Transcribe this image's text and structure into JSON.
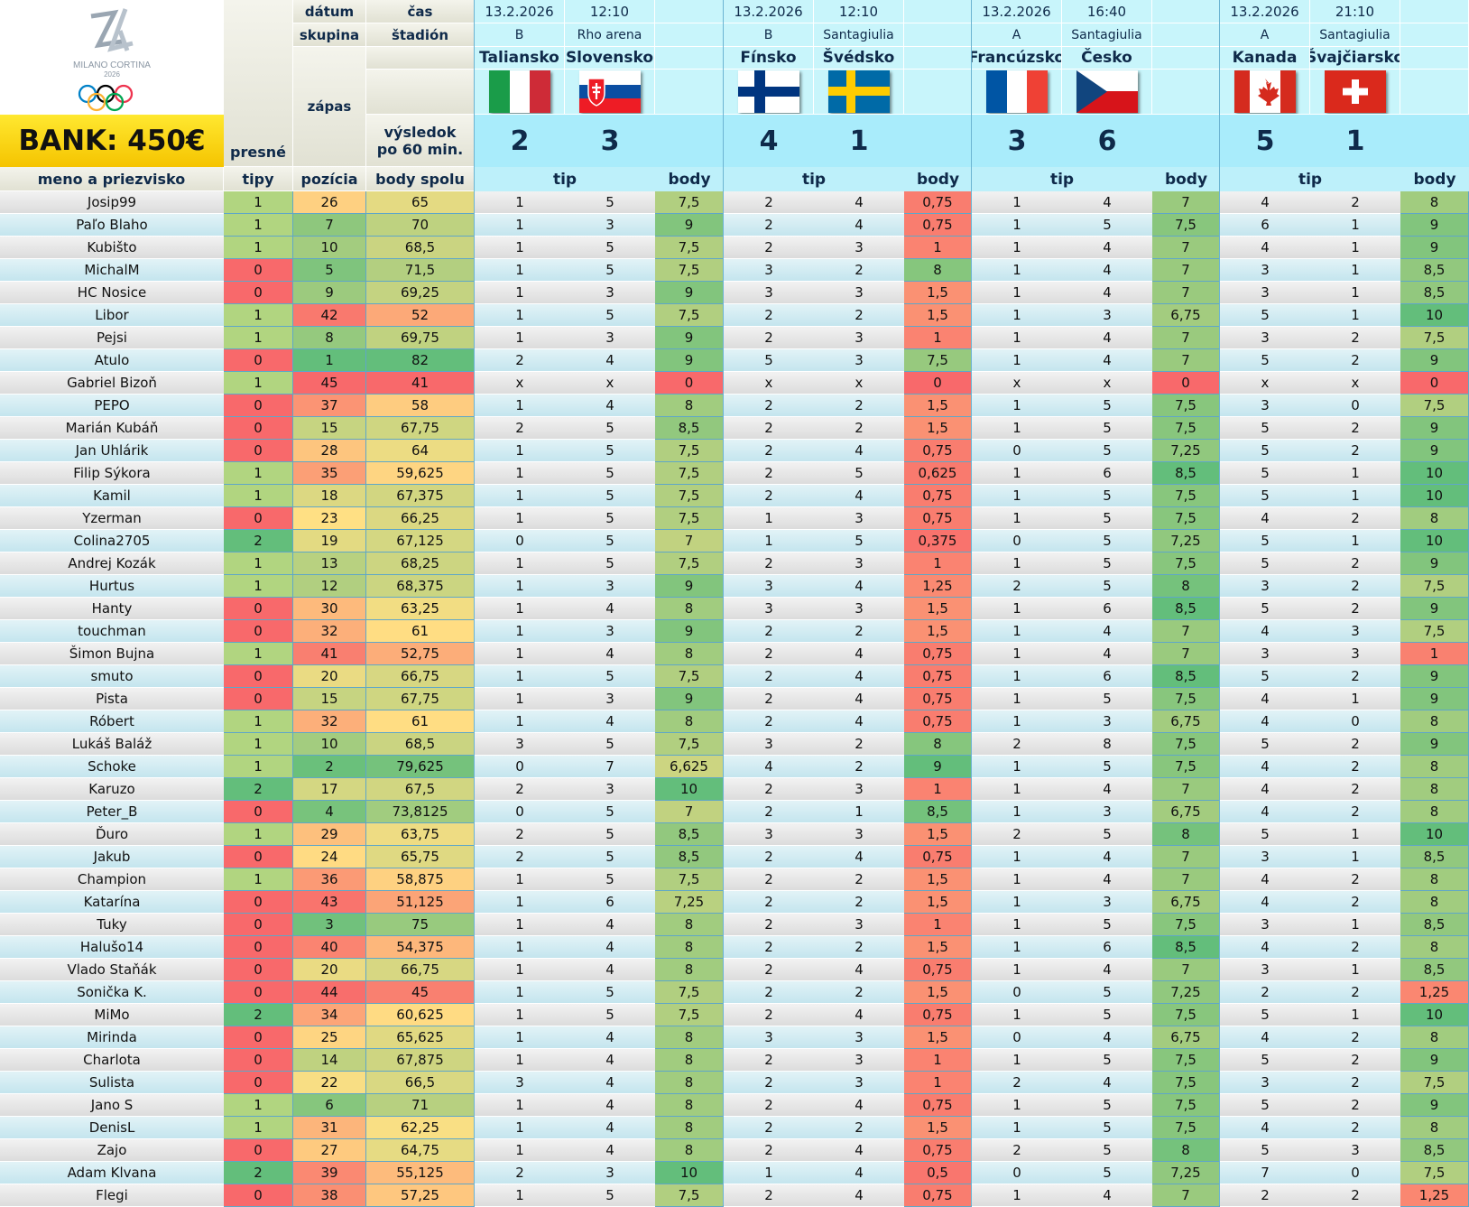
{
  "header": {
    "bank": "BANK: 450€",
    "label_datum": "dátum",
    "label_cas": "čas",
    "label_skupina": "skupina",
    "label_stadion": "štadión",
    "label_zapas": "zápas",
    "label_vysledok": "výsledok po 60 min.",
    "label_presne_tipy": "presné tipy",
    "label_meno": "meno a priezvisko",
    "label_pozicia": "pozícia",
    "label_body_spolu": "body spolu",
    "label_tip": "tip",
    "label_body": "body",
    "logo_text_1": "MILANO CORTINA",
    "logo_text_2": "2026"
  },
  "matches": [
    {
      "date": "13.2.2026",
      "time": "12:10",
      "group": "B",
      "stadium": "Rho arena",
      "home": "Taliansko",
      "away": "Slovensko",
      "home_score": "2",
      "away_score": "3",
      "home_flag": "flag-italy",
      "away_flag": "flag-slovakia"
    },
    {
      "date": "13.2.2026",
      "time": "12:10",
      "group": "B",
      "stadium": "Santagiulia",
      "home": "Fínsko",
      "away": "Švédsko",
      "home_score": "4",
      "away_score": "1",
      "home_flag": "flag-finland",
      "away_flag": "flag-sweden"
    },
    {
      "date": "13.2.2026",
      "time": "16:40",
      "group": "A",
      "stadium": "Santagiulia",
      "home": "Francúzsko",
      "away": "Česko",
      "home_score": "3",
      "away_score": "6",
      "home_flag": "flag-france",
      "away_flag": "flag-czechia"
    },
    {
      "date": "13.2.2026",
      "time": "21:10",
      "group": "A",
      "stadium": "Santagiulia",
      "home": "Kanada",
      "away": "Švajčiarsko",
      "home_score": "5",
      "away_score": "1",
      "home_flag": "flag-canada",
      "away_flag": "flag-switzerland"
    }
  ],
  "colors": {
    "red": "#f8696b",
    "orange": "#fba977",
    "yellow": "#ffe084",
    "lightgreen": "#b1d580",
    "green": "#63be7b"
  },
  "rows": [
    {
      "name": "Josip99",
      "exact": "1",
      "pos": "26",
      "total": "65",
      "m": [
        [
          "1",
          "5",
          "7,5"
        ],
        [
          "2",
          "4",
          "0,75"
        ],
        [
          "1",
          "4",
          "7"
        ],
        [
          "4",
          "2",
          "8"
        ]
      ]
    },
    {
      "name": "Paľo Blaho",
      "exact": "1",
      "pos": "7",
      "total": "70",
      "m": [
        [
          "1",
          "3",
          "9"
        ],
        [
          "2",
          "4",
          "0,75"
        ],
        [
          "1",
          "5",
          "7,5"
        ],
        [
          "6",
          "1",
          "9"
        ]
      ]
    },
    {
      "name": "Kubišto",
      "exact": "1",
      "pos": "10",
      "total": "68,5",
      "m": [
        [
          "1",
          "5",
          "7,5"
        ],
        [
          "2",
          "3",
          "1"
        ],
        [
          "1",
          "4",
          "7"
        ],
        [
          "4",
          "1",
          "9"
        ]
      ]
    },
    {
      "name": "MichalM",
      "exact": "0",
      "pos": "5",
      "total": "71,5",
      "m": [
        [
          "1",
          "5",
          "7,5"
        ],
        [
          "3",
          "2",
          "8"
        ],
        [
          "1",
          "4",
          "7"
        ],
        [
          "3",
          "1",
          "8,5"
        ]
      ]
    },
    {
      "name": "HC Nosice",
      "exact": "0",
      "pos": "9",
      "total": "69,25",
      "m": [
        [
          "1",
          "3",
          "9"
        ],
        [
          "3",
          "3",
          "1,5"
        ],
        [
          "1",
          "4",
          "7"
        ],
        [
          "3",
          "1",
          "8,5"
        ]
      ]
    },
    {
      "name": "Libor",
      "exact": "1",
      "pos": "42",
      "total": "52",
      "m": [
        [
          "1",
          "5",
          "7,5"
        ],
        [
          "2",
          "2",
          "1,5"
        ],
        [
          "1",
          "3",
          "6,75"
        ],
        [
          "5",
          "1",
          "10"
        ]
      ]
    },
    {
      "name": "Pejsi",
      "exact": "1",
      "pos": "8",
      "total": "69,75",
      "m": [
        [
          "1",
          "3",
          "9"
        ],
        [
          "2",
          "3",
          "1"
        ],
        [
          "1",
          "4",
          "7"
        ],
        [
          "3",
          "2",
          "7,5"
        ]
      ]
    },
    {
      "name": "Atulo",
      "exact": "0",
      "pos": "1",
      "total": "82",
      "m": [
        [
          "2",
          "4",
          "9"
        ],
        [
          "5",
          "3",
          "7,5"
        ],
        [
          "1",
          "4",
          "7"
        ],
        [
          "5",
          "2",
          "9"
        ]
      ]
    },
    {
      "name": "Gabriel Bizoň",
      "exact": "1",
      "pos": "45",
      "total": "41",
      "m": [
        [
          "x",
          "x",
          "0"
        ],
        [
          "x",
          "x",
          "0"
        ],
        [
          "x",
          "x",
          "0"
        ],
        [
          "x",
          "x",
          "0"
        ]
      ]
    },
    {
      "name": "PEPO",
      "exact": "0",
      "pos": "37",
      "total": "58",
      "m": [
        [
          "1",
          "4",
          "8"
        ],
        [
          "2",
          "2",
          "1,5"
        ],
        [
          "1",
          "5",
          "7,5"
        ],
        [
          "3",
          "0",
          "7,5"
        ]
      ]
    },
    {
      "name": "Marián Kubáň",
      "exact": "0",
      "pos": "15",
      "total": "67,75",
      "m": [
        [
          "2",
          "5",
          "8,5"
        ],
        [
          "2",
          "2",
          "1,5"
        ],
        [
          "1",
          "5",
          "7,5"
        ],
        [
          "5",
          "2",
          "9"
        ]
      ]
    },
    {
      "name": "Jan Uhlárik",
      "exact": "0",
      "pos": "28",
      "total": "64",
      "m": [
        [
          "1",
          "5",
          "7,5"
        ],
        [
          "2",
          "4",
          "0,75"
        ],
        [
          "0",
          "5",
          "7,25"
        ],
        [
          "5",
          "2",
          "9"
        ]
      ]
    },
    {
      "name": "Filip Sýkora",
      "exact": "1",
      "pos": "35",
      "total": "59,625",
      "m": [
        [
          "1",
          "5",
          "7,5"
        ],
        [
          "2",
          "5",
          "0,625"
        ],
        [
          "1",
          "6",
          "8,5"
        ],
        [
          "5",
          "1",
          "10"
        ]
      ]
    },
    {
      "name": "Kamil",
      "exact": "1",
      "pos": "18",
      "total": "67,375",
      "m": [
        [
          "1",
          "5",
          "7,5"
        ],
        [
          "2",
          "4",
          "0,75"
        ],
        [
          "1",
          "5",
          "7,5"
        ],
        [
          "5",
          "1",
          "10"
        ]
      ]
    },
    {
      "name": "Yzerman",
      "exact": "0",
      "pos": "23",
      "total": "66,25",
      "m": [
        [
          "1",
          "5",
          "7,5"
        ],
        [
          "1",
          "3",
          "0,75"
        ],
        [
          "1",
          "5",
          "7,5"
        ],
        [
          "4",
          "2",
          "8"
        ]
      ]
    },
    {
      "name": "Colina2705",
      "exact": "2",
      "pos": "19",
      "total": "67,125",
      "m": [
        [
          "0",
          "5",
          "7"
        ],
        [
          "1",
          "5",
          "0,375"
        ],
        [
          "0",
          "5",
          "7,25"
        ],
        [
          "5",
          "1",
          "10"
        ]
      ]
    },
    {
      "name": "Andrej Kozák",
      "exact": "1",
      "pos": "13",
      "total": "68,25",
      "m": [
        [
          "1",
          "5",
          "7,5"
        ],
        [
          "2",
          "3",
          "1"
        ],
        [
          "1",
          "5",
          "7,5"
        ],
        [
          "5",
          "2",
          "9"
        ]
      ]
    },
    {
      "name": "Hurtus",
      "exact": "1",
      "pos": "12",
      "total": "68,375",
      "m": [
        [
          "1",
          "3",
          "9"
        ],
        [
          "3",
          "4",
          "1,25"
        ],
        [
          "2",
          "5",
          "8"
        ],
        [
          "3",
          "2",
          "7,5"
        ]
      ]
    },
    {
      "name": "Hanty",
      "exact": "0",
      "pos": "30",
      "total": "63,25",
      "m": [
        [
          "1",
          "4",
          "8"
        ],
        [
          "3",
          "3",
          "1,5"
        ],
        [
          "1",
          "6",
          "8,5"
        ],
        [
          "5",
          "2",
          "9"
        ]
      ]
    },
    {
      "name": "touchman",
      "exact": "0",
      "pos": "32",
      "total": "61",
      "m": [
        [
          "1",
          "3",
          "9"
        ],
        [
          "2",
          "2",
          "1,5"
        ],
        [
          "1",
          "4",
          "7"
        ],
        [
          "4",
          "3",
          "7,5"
        ]
      ]
    },
    {
      "name": "Šimon Bujna",
      "exact": "1",
      "pos": "41",
      "total": "52,75",
      "m": [
        [
          "1",
          "4",
          "8"
        ],
        [
          "2",
          "4",
          "0,75"
        ],
        [
          "1",
          "4",
          "7"
        ],
        [
          "3",
          "3",
          "1"
        ]
      ]
    },
    {
      "name": "smuto",
      "exact": "0",
      "pos": "20",
      "total": "66,75",
      "m": [
        [
          "1",
          "5",
          "7,5"
        ],
        [
          "2",
          "4",
          "0,75"
        ],
        [
          "1",
          "6",
          "8,5"
        ],
        [
          "5",
          "2",
          "9"
        ]
      ]
    },
    {
      "name": "Pista",
      "exact": "0",
      "pos": "15",
      "total": "67,75",
      "m": [
        [
          "1",
          "3",
          "9"
        ],
        [
          "2",
          "4",
          "0,75"
        ],
        [
          "1",
          "5",
          "7,5"
        ],
        [
          "4",
          "1",
          "9"
        ]
      ]
    },
    {
      "name": "Róbert",
      "exact": "1",
      "pos": "32",
      "total": "61",
      "m": [
        [
          "1",
          "4",
          "8"
        ],
        [
          "2",
          "4",
          "0,75"
        ],
        [
          "1",
          "3",
          "6,75"
        ],
        [
          "4",
          "0",
          "8"
        ]
      ]
    },
    {
      "name": "Lukáš Baláž",
      "exact": "1",
      "pos": "10",
      "total": "68,5",
      "m": [
        [
          "3",
          "5",
          "7,5"
        ],
        [
          "3",
          "2",
          "8"
        ],
        [
          "2",
          "8",
          "7,5"
        ],
        [
          "5",
          "2",
          "9"
        ]
      ]
    },
    {
      "name": "Schoke",
      "exact": "1",
      "pos": "2",
      "total": "79,625",
      "m": [
        [
          "0",
          "7",
          "6,625"
        ],
        [
          "4",
          "2",
          "9"
        ],
        [
          "1",
          "5",
          "7,5"
        ],
        [
          "4",
          "2",
          "8"
        ]
      ]
    },
    {
      "name": "Karuzo",
      "exact": "2",
      "pos": "17",
      "total": "67,5",
      "m": [
        [
          "2",
          "3",
          "10"
        ],
        [
          "2",
          "3",
          "1"
        ],
        [
          "1",
          "4",
          "7"
        ],
        [
          "4",
          "2",
          "8"
        ]
      ]
    },
    {
      "name": "Peter_B",
      "exact": "0",
      "pos": "4",
      "total": "73,8125",
      "m": [
        [
          "0",
          "5",
          "7"
        ],
        [
          "2",
          "1",
          "8,5"
        ],
        [
          "1",
          "3",
          "6,75"
        ],
        [
          "4",
          "2",
          "8"
        ]
      ]
    },
    {
      "name": "Ďuro",
      "exact": "1",
      "pos": "29",
      "total": "63,75",
      "m": [
        [
          "2",
          "5",
          "8,5"
        ],
        [
          "3",
          "3",
          "1,5"
        ],
        [
          "2",
          "5",
          "8"
        ],
        [
          "5",
          "1",
          "10"
        ]
      ]
    },
    {
      "name": "Jakub",
      "exact": "0",
      "pos": "24",
      "total": "65,75",
      "m": [
        [
          "2",
          "5",
          "8,5"
        ],
        [
          "2",
          "4",
          "0,75"
        ],
        [
          "1",
          "4",
          "7"
        ],
        [
          "3",
          "1",
          "8,5"
        ]
      ]
    },
    {
      "name": "Champion",
      "exact": "1",
      "pos": "36",
      "total": "58,875",
      "m": [
        [
          "1",
          "5",
          "7,5"
        ],
        [
          "2",
          "2",
          "1,5"
        ],
        [
          "1",
          "4",
          "7"
        ],
        [
          "4",
          "2",
          "8"
        ]
      ]
    },
    {
      "name": "Katarína",
      "exact": "0",
      "pos": "43",
      "total": "51,125",
      "m": [
        [
          "1",
          "6",
          "7,25"
        ],
        [
          "2",
          "2",
          "1,5"
        ],
        [
          "1",
          "3",
          "6,75"
        ],
        [
          "4",
          "2",
          "8"
        ]
      ]
    },
    {
      "name": "Tuky",
      "exact": "0",
      "pos": "3",
      "total": "75",
      "m": [
        [
          "1",
          "4",
          "8"
        ],
        [
          "2",
          "3",
          "1"
        ],
        [
          "1",
          "5",
          "7,5"
        ],
        [
          "3",
          "1",
          "8,5"
        ]
      ]
    },
    {
      "name": "Halušo14",
      "exact": "0",
      "pos": "40",
      "total": "54,375",
      "m": [
        [
          "1",
          "4",
          "8"
        ],
        [
          "2",
          "2",
          "1,5"
        ],
        [
          "1",
          "6",
          "8,5"
        ],
        [
          "4",
          "2",
          "8"
        ]
      ]
    },
    {
      "name": "Vlado Staňák",
      "exact": "0",
      "pos": "20",
      "total": "66,75",
      "m": [
        [
          "1",
          "4",
          "8"
        ],
        [
          "2",
          "4",
          "0,75"
        ],
        [
          "1",
          "4",
          "7"
        ],
        [
          "3",
          "1",
          "8,5"
        ]
      ]
    },
    {
      "name": "Sonička K.",
      "exact": "0",
      "pos": "44",
      "total": "45",
      "m": [
        [
          "1",
          "5",
          "7,5"
        ],
        [
          "2",
          "2",
          "1,5"
        ],
        [
          "0",
          "5",
          "7,25"
        ],
        [
          "2",
          "2",
          "1,25"
        ]
      ]
    },
    {
      "name": "MiMo",
      "exact": "2",
      "pos": "34",
      "total": "60,625",
      "m": [
        [
          "1",
          "5",
          "7,5"
        ],
        [
          "2",
          "4",
          "0,75"
        ],
        [
          "1",
          "5",
          "7,5"
        ],
        [
          "5",
          "1",
          "10"
        ]
      ]
    },
    {
      "name": "Mirinda",
      "exact": "0",
      "pos": "25",
      "total": "65,625",
      "m": [
        [
          "1",
          "4",
          "8"
        ],
        [
          "3",
          "3",
          "1,5"
        ],
        [
          "0",
          "4",
          "6,75"
        ],
        [
          "4",
          "2",
          "8"
        ]
      ]
    },
    {
      "name": "Charlota",
      "exact": "0",
      "pos": "14",
      "total": "67,875",
      "m": [
        [
          "1",
          "4",
          "8"
        ],
        [
          "2",
          "3",
          "1"
        ],
        [
          "1",
          "5",
          "7,5"
        ],
        [
          "5",
          "2",
          "9"
        ]
      ]
    },
    {
      "name": "Sulista",
      "exact": "0",
      "pos": "22",
      "total": "66,5",
      "m": [
        [
          "3",
          "4",
          "8"
        ],
        [
          "2",
          "3",
          "1"
        ],
        [
          "2",
          "4",
          "7,5"
        ],
        [
          "3",
          "2",
          "7,5"
        ]
      ]
    },
    {
      "name": "Jano S",
      "exact": "1",
      "pos": "6",
      "total": "71",
      "m": [
        [
          "1",
          "4",
          "8"
        ],
        [
          "2",
          "4",
          "0,75"
        ],
        [
          "1",
          "5",
          "7,5"
        ],
        [
          "5",
          "2",
          "9"
        ]
      ]
    },
    {
      "name": "DenisL",
      "exact": "1",
      "pos": "31",
      "total": "62,25",
      "m": [
        [
          "1",
          "4",
          "8"
        ],
        [
          "2",
          "2",
          "1,5"
        ],
        [
          "1",
          "5",
          "7,5"
        ],
        [
          "4",
          "2",
          "8"
        ]
      ]
    },
    {
      "name": "Zajo",
      "exact": "0",
      "pos": "27",
      "total": "64,75",
      "m": [
        [
          "1",
          "4",
          "8"
        ],
        [
          "2",
          "4",
          "0,75"
        ],
        [
          "2",
          "5",
          "8"
        ],
        [
          "5",
          "3",
          "8,5"
        ]
      ]
    },
    {
      "name": "Adam Klvana",
      "exact": "2",
      "pos": "39",
      "total": "55,125",
      "m": [
        [
          "2",
          "3",
          "10"
        ],
        [
          "1",
          "4",
          "0,5"
        ],
        [
          "0",
          "5",
          "7,25"
        ],
        [
          "7",
          "0",
          "7,5"
        ]
      ]
    },
    {
      "name": "Flegi",
      "exact": "0",
      "pos": "38",
      "total": "57,25",
      "m": [
        [
          "1",
          "5",
          "7,5"
        ],
        [
          "2",
          "4",
          "0,75"
        ],
        [
          "1",
          "4",
          "7"
        ],
        [
          "2",
          "2",
          "1,25"
        ]
      ]
    }
  ]
}
